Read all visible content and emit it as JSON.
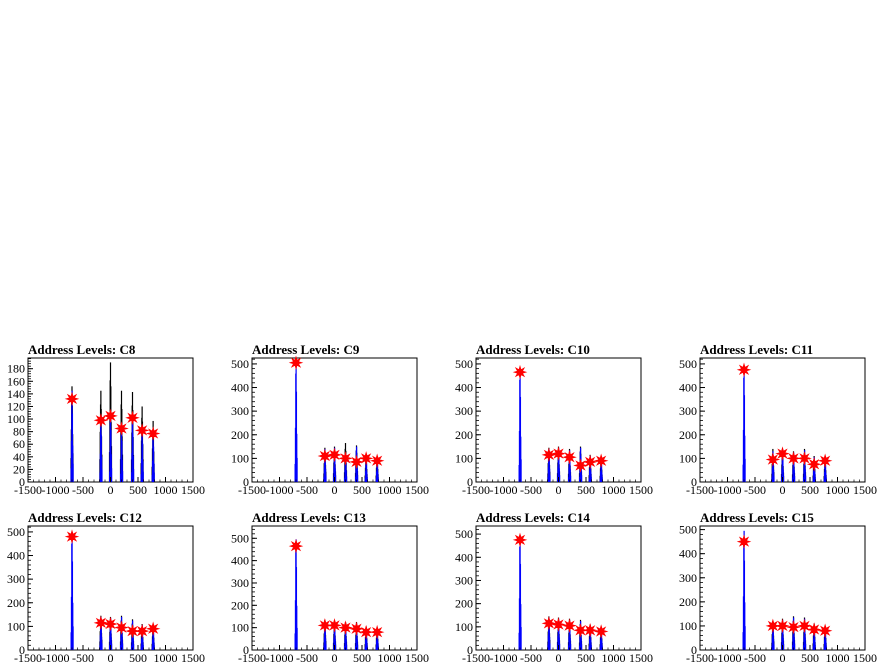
{
  "chart_data": [
    {
      "type": "bar",
      "title": "Address Levels: C8",
      "xlim": [
        -1500,
        1500
      ],
      "ylim": [
        0,
        197
      ],
      "yticks": [
        0,
        20,
        40,
        60,
        80,
        100,
        120,
        140,
        160,
        180
      ],
      "peak_x": [
        -700,
        -175,
        0,
        200,
        400,
        575,
        775
      ],
      "peak_black": [
        152,
        145,
        190,
        145,
        143,
        120,
        97
      ],
      "peak_blue": [
        145,
        100,
        110,
        87,
        103,
        82,
        75
      ],
      "markers": [
        132,
        98,
        105,
        85,
        102,
        82,
        77
      ]
    },
    {
      "type": "bar",
      "title": "Address Levels: C9",
      "xlim": [
        -1500,
        1500
      ],
      "ylim": [
        0,
        525
      ],
      "yticks": [
        0,
        100,
        200,
        300,
        400,
        500
      ],
      "peak_x": [
        -700,
        -175,
        0,
        200,
        400,
        575,
        775
      ],
      "peak_black": [
        0,
        145,
        150,
        165,
        155,
        110,
        110
      ],
      "peak_blue": [
        510,
        140,
        145,
        120,
        150,
        105,
        100
      ],
      "markers": [
        505,
        110,
        115,
        100,
        85,
        100,
        90
      ]
    },
    {
      "type": "bar",
      "title": "Address Levels: C10",
      "xlim": [
        -1500,
        1500
      ],
      "ylim": [
        0,
        525
      ],
      "yticks": [
        0,
        100,
        200,
        300,
        400,
        500
      ],
      "peak_x": [
        -700,
        -175,
        0,
        200,
        400,
        575,
        775
      ],
      "peak_black": [
        0,
        145,
        150,
        140,
        150,
        115,
        105
      ],
      "peak_blue": [
        480,
        140,
        145,
        135,
        145,
        110,
        100
      ],
      "markers": [
        465,
        115,
        120,
        105,
        70,
        85,
        90
      ]
    },
    {
      "type": "bar",
      "title": "Address Levels: C11",
      "xlim": [
        -1500,
        1500
      ],
      "ylim": [
        0,
        525
      ],
      "yticks": [
        0,
        100,
        200,
        300,
        400,
        500
      ],
      "peak_x": [
        -700,
        -175,
        0,
        200,
        400,
        575,
        775
      ],
      "peak_black": [
        0,
        140,
        135,
        130,
        140,
        110,
        100
      ],
      "peak_blue": [
        490,
        130,
        130,
        125,
        135,
        105,
        95
      ],
      "markers": [
        475,
        95,
        120,
        100,
        100,
        75,
        90
      ]
    },
    {
      "type": "bar",
      "title": "Address Levels: C12",
      "xlim": [
        -1500,
        1500
      ],
      "ylim": [
        0,
        525
      ],
      "yticks": [
        0,
        100,
        200,
        300,
        400,
        500
      ],
      "peak_x": [
        -700,
        -175,
        0,
        200,
        400,
        575,
        775
      ],
      "peak_black": [
        0,
        145,
        140,
        145,
        130,
        110,
        105
      ],
      "peak_blue": [
        500,
        140,
        135,
        140,
        125,
        105,
        100
      ],
      "markers": [
        480,
        115,
        110,
        95,
        80,
        80,
        90
      ]
    },
    {
      "type": "bar",
      "title": "Address Levels: C13",
      "xlim": [
        -1500,
        1500
      ],
      "ylim": [
        0,
        555
      ],
      "yticks": [
        0,
        100,
        200,
        300,
        400,
        500
      ],
      "peak_x": [
        -700,
        -175,
        0,
        200,
        400,
        575,
        775
      ],
      "peak_black": [
        0,
        135,
        130,
        125,
        125,
        105,
        100
      ],
      "peak_blue": [
        495,
        130,
        125,
        120,
        120,
        100,
        95
      ],
      "markers": [
        465,
        110,
        110,
        100,
        95,
        80,
        80
      ]
    },
    {
      "type": "bar",
      "title": "Address Levels: C14",
      "xlim": [
        -1500,
        1500
      ],
      "ylim": [
        0,
        535
      ],
      "yticks": [
        0,
        100,
        200,
        300,
        400,
        500
      ],
      "peak_x": [
        -700,
        -175,
        0,
        200,
        400,
        575,
        775
      ],
      "peak_black": [
        0,
        145,
        140,
        135,
        130,
        110,
        100
      ],
      "peak_blue": [
        495,
        140,
        135,
        130,
        125,
        105,
        95
      ],
      "markers": [
        475,
        115,
        110,
        105,
        85,
        85,
        80
      ]
    },
    {
      "type": "bar",
      "title": "Address Levels: C15",
      "xlim": [
        -1500,
        1500
      ],
      "ylim": [
        0,
        515
      ],
      "yticks": [
        0,
        100,
        200,
        300,
        400,
        500
      ],
      "peak_x": [
        -700,
        -175,
        0,
        200,
        400,
        575,
        775
      ],
      "peak_black": [
        0,
        120,
        130,
        140,
        135,
        110,
        100
      ],
      "peak_blue": [
        495,
        115,
        125,
        135,
        130,
        105,
        95
      ],
      "markers": [
        450,
        100,
        100,
        95,
        100,
        85,
        80
      ]
    }
  ],
  "xticks": [
    -1500,
    -1000,
    -500,
    0,
    500,
    1000,
    1500
  ],
  "colors": {
    "black_hist": "#000000",
    "blue_hist": "#0000ff",
    "marker": "#ff0000",
    "frame": "#000000"
  }
}
